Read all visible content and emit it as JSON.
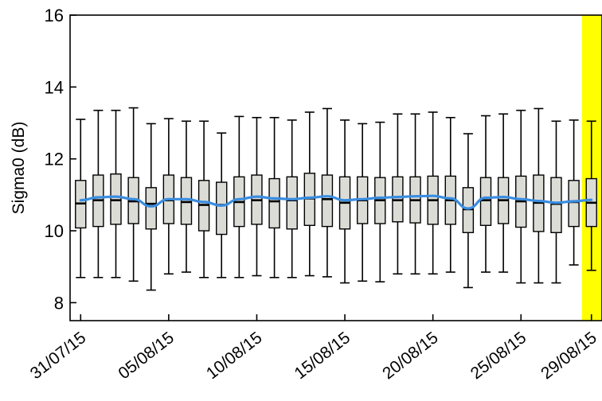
{
  "chart_data": {
    "type": "box",
    "title": "",
    "xlabel": "",
    "ylabel": "Sigma0 (dB)",
    "ylim": [
      7.5,
      16
    ],
    "yticks": [
      8,
      10,
      12,
      14,
      16
    ],
    "x_tick_labels": [
      "31/07/15",
      "05/08/15",
      "10/08/15",
      "15/08/15",
      "20/08/15",
      "25/08/15",
      "29/08/15"
    ],
    "x_tick_days": [
      0,
      5,
      10,
      15,
      20,
      25,
      29
    ],
    "xlim_days": [
      -0.6,
      29.6
    ],
    "dates": [
      "31/07/15",
      "01/08/15",
      "02/08/15",
      "03/08/15",
      "04/08/15",
      "05/08/15",
      "06/08/15",
      "07/08/15",
      "08/08/15",
      "09/08/15",
      "10/08/15",
      "11/08/15",
      "12/08/15",
      "13/08/15",
      "14/08/15",
      "15/08/15",
      "16/08/15",
      "17/08/15",
      "18/08/15",
      "19/08/15",
      "20/08/15",
      "21/08/15",
      "22/08/15",
      "23/08/15",
      "24/08/15",
      "25/08/15",
      "26/08/15",
      "27/08/15",
      "28/08/15",
      "29/08/15"
    ],
    "box_color": "#dcdcd7",
    "median_line_color": "#3a8de0",
    "highlight_color": "#ffff00",
    "highlight_dates": [
      "29/08/15"
    ],
    "boxes": [
      {
        "whisker_low": 8.7,
        "q1": 10.08,
        "median": 10.76,
        "q3": 11.4,
        "whisker_high": 13.1
      },
      {
        "whisker_low": 8.7,
        "q1": 10.12,
        "median": 10.85,
        "q3": 11.55,
        "whisker_high": 13.35
      },
      {
        "whisker_low": 8.7,
        "q1": 10.18,
        "median": 10.85,
        "q3": 11.58,
        "whisker_high": 13.35
      },
      {
        "whisker_low": 8.6,
        "q1": 10.2,
        "median": 10.82,
        "q3": 11.48,
        "whisker_high": 13.42
      },
      {
        "whisker_low": 8.35,
        "q1": 10.05,
        "median": 10.75,
        "q3": 11.2,
        "whisker_high": 12.98
      },
      {
        "whisker_low": 8.8,
        "q1": 10.2,
        "median": 10.85,
        "q3": 11.55,
        "whisker_high": 13.12
      },
      {
        "whisker_low": 8.85,
        "q1": 10.18,
        "median": 10.8,
        "q3": 11.48,
        "whisker_high": 13.05
      },
      {
        "whisker_low": 8.7,
        "q1": 10.0,
        "median": 10.72,
        "q3": 11.4,
        "whisker_high": 13.05
      },
      {
        "whisker_low": 8.7,
        "q1": 9.9,
        "median": 10.72,
        "q3": 11.35,
        "whisker_high": 12.72
      },
      {
        "whisker_low": 8.7,
        "q1": 10.12,
        "median": 10.8,
        "q3": 11.5,
        "whisker_high": 13.18
      },
      {
        "whisker_low": 8.75,
        "q1": 10.18,
        "median": 10.85,
        "q3": 11.55,
        "whisker_high": 13.15
      },
      {
        "whisker_low": 8.7,
        "q1": 10.08,
        "median": 10.82,
        "q3": 11.45,
        "whisker_high": 13.15
      },
      {
        "whisker_low": 8.7,
        "q1": 10.05,
        "median": 10.85,
        "q3": 11.5,
        "whisker_high": 13.08
      },
      {
        "whisker_low": 8.75,
        "q1": 10.15,
        "median": 10.9,
        "q3": 11.6,
        "whisker_high": 13.3
      },
      {
        "whisker_low": 8.72,
        "q1": 10.12,
        "median": 10.88,
        "q3": 11.55,
        "whisker_high": 13.4
      },
      {
        "whisker_low": 8.55,
        "q1": 10.05,
        "median": 10.78,
        "q3": 11.5,
        "whisker_high": 13.08
      },
      {
        "whisker_low": 8.6,
        "q1": 10.2,
        "median": 10.85,
        "q3": 11.5,
        "whisker_high": 12.98
      },
      {
        "whisker_low": 8.58,
        "q1": 10.2,
        "median": 10.85,
        "q3": 11.48,
        "whisker_high": 13.02
      },
      {
        "whisker_low": 8.8,
        "q1": 10.25,
        "median": 10.85,
        "q3": 11.5,
        "whisker_high": 13.25
      },
      {
        "whisker_low": 8.8,
        "q1": 10.22,
        "median": 10.85,
        "q3": 11.5,
        "whisker_high": 13.25
      },
      {
        "whisker_low": 8.8,
        "q1": 10.18,
        "median": 10.85,
        "q3": 11.52,
        "whisker_high": 13.3
      },
      {
        "whisker_low": 8.85,
        "q1": 10.18,
        "median": 10.85,
        "q3": 11.52,
        "whisker_high": 13.15
      },
      {
        "whisker_low": 8.42,
        "q1": 9.95,
        "median": 10.6,
        "q3": 11.2,
        "whisker_high": 12.7
      },
      {
        "whisker_low": 8.85,
        "q1": 10.15,
        "median": 10.85,
        "q3": 11.48,
        "whisker_high": 13.2
      },
      {
        "whisker_low": 8.85,
        "q1": 10.2,
        "median": 10.85,
        "q3": 11.48,
        "whisker_high": 13.25
      },
      {
        "whisker_low": 8.55,
        "q1": 10.1,
        "median": 10.82,
        "q3": 11.52,
        "whisker_high": 13.35
      },
      {
        "whisker_low": 8.55,
        "q1": 9.98,
        "median": 10.78,
        "q3": 11.55,
        "whisker_high": 13.4
      },
      {
        "whisker_low": 8.55,
        "q1": 9.95,
        "median": 10.75,
        "q3": 11.48,
        "whisker_high": 13.05
      },
      {
        "whisker_low": 9.05,
        "q1": 10.12,
        "median": 10.8,
        "q3": 11.4,
        "whisker_high": 13.08
      },
      {
        "whisker_low": 8.9,
        "q1": 10.12,
        "median": 10.78,
        "q3": 11.45,
        "whisker_high": 13.05
      }
    ],
    "smooth_line_days": [
      0,
      1,
      2,
      3,
      4,
      5,
      6,
      7,
      8,
      9,
      10,
      11,
      12,
      13,
      14,
      15,
      16,
      17,
      18,
      19,
      20,
      21,
      22,
      23,
      24,
      25,
      26,
      27,
      28,
      29
    ],
    "smooth_line_values": [
      10.85,
      10.93,
      10.95,
      10.88,
      10.68,
      10.88,
      10.88,
      10.8,
      10.7,
      10.88,
      10.95,
      10.9,
      10.88,
      10.92,
      10.96,
      10.85,
      10.88,
      10.92,
      10.94,
      10.96,
      10.97,
      10.9,
      10.62,
      10.92,
      10.94,
      10.88,
      10.83,
      10.78,
      10.82,
      10.86
    ],
    "grid": false,
    "legend": "none"
  }
}
